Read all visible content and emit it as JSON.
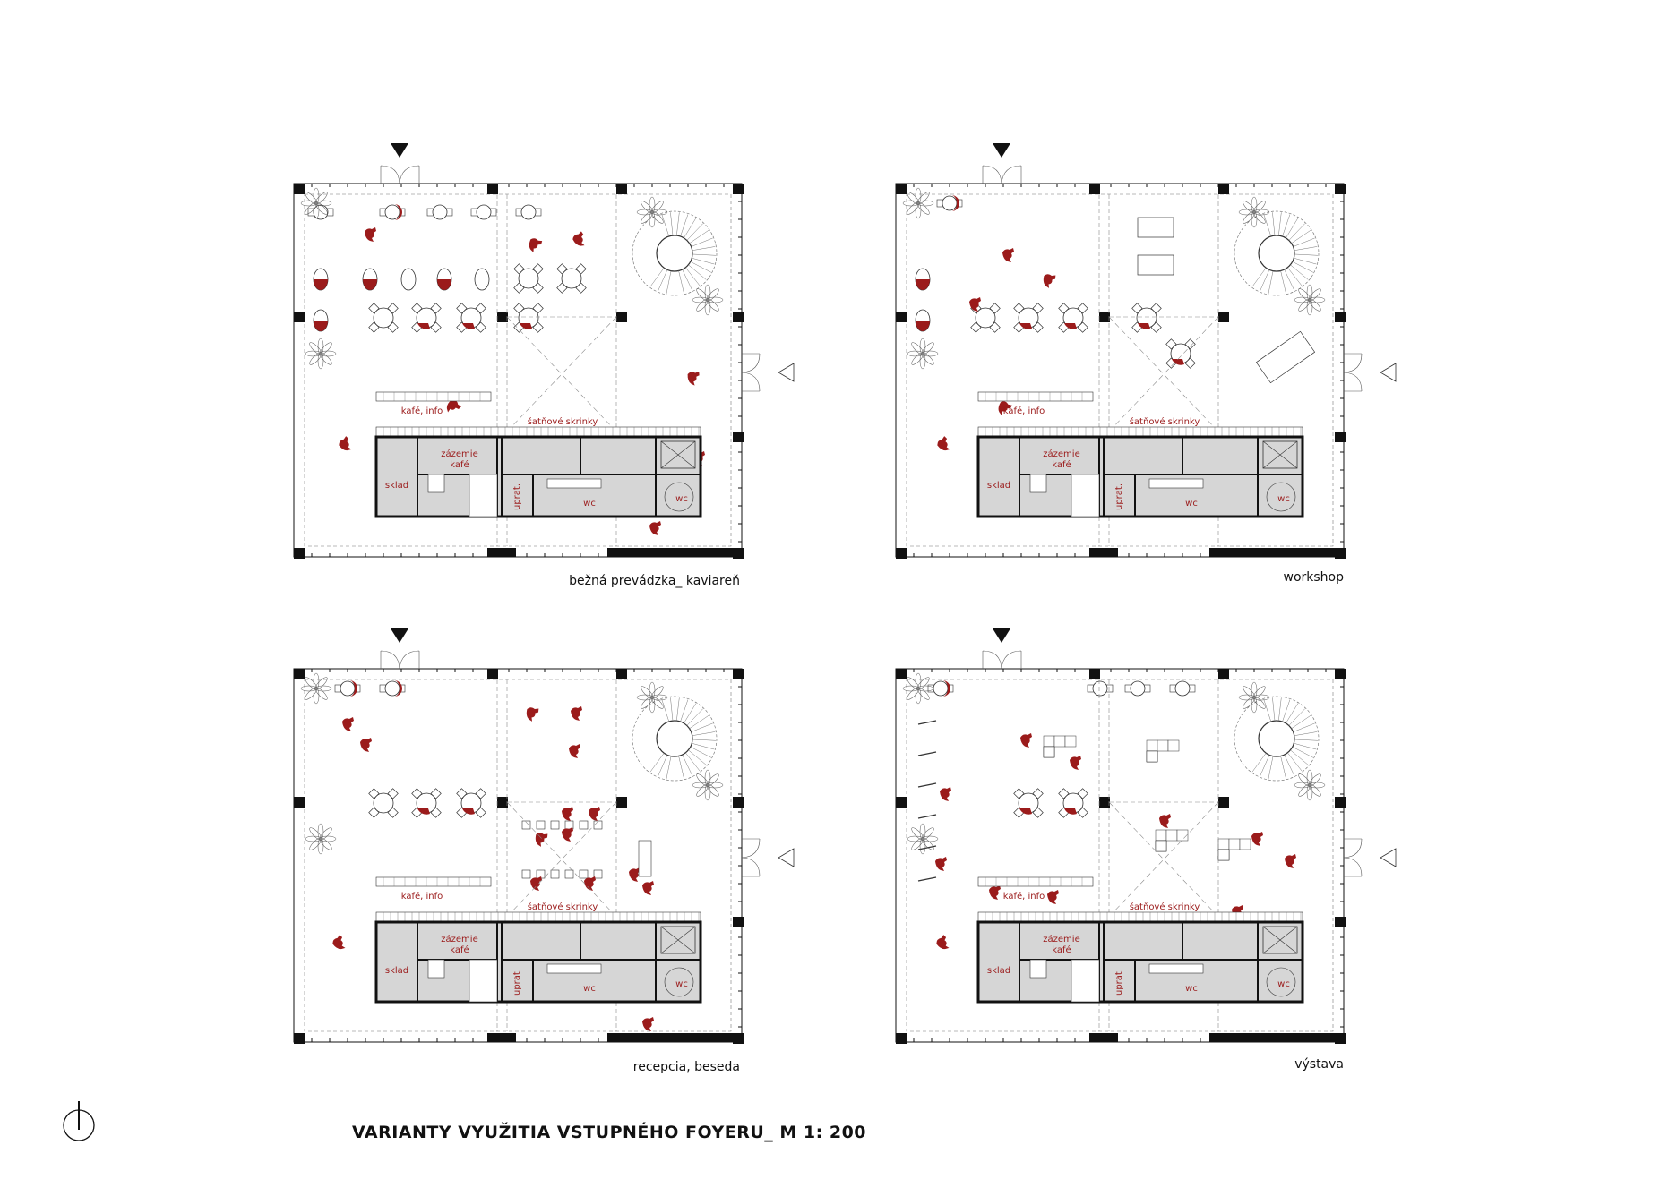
{
  "title": "VARIANTY VYUŽITIA VSTUPNÉHO FOYERU_ M 1: 200",
  "colors": {
    "accent": "#9b1b1b",
    "service_fill": "#d6d6d6",
    "line": "#111111"
  },
  "icons": {
    "north_arrow": "north-arrow-icon",
    "entrance": "entrance-triangle-icon"
  },
  "room_labels": {
    "cafe_info": "kafé, info",
    "lockers": "šatňové skrinky",
    "cafe_backroom_1": "zázemie",
    "cafe_backroom_2": "kafé",
    "storage": "sklad",
    "cleaning": "uprat.",
    "wc_main": "wc",
    "wc_small": "wc"
  },
  "plans": [
    {
      "id": "cafe",
      "caption": "bežná prevádzka_ kaviareň"
    },
    {
      "id": "workshop",
      "caption": "workshop"
    },
    {
      "id": "reception",
      "caption": "recepcia, beseda"
    },
    {
      "id": "exhibition",
      "caption": "výstava"
    }
  ]
}
